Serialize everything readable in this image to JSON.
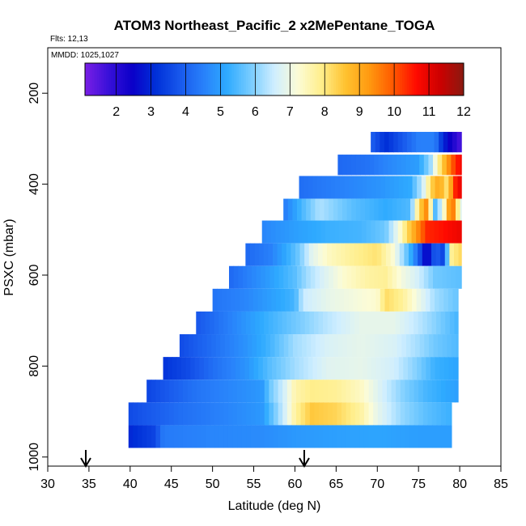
{
  "chart_data": {
    "type": "heatmap",
    "title": "ATOM3 Northeast_Pacific_2 x2MePentane_TOGA",
    "flights_note": "Flts: 12,13",
    "date_note": "MMDD: 1025,1027",
    "xlabel": "Latitude (deg N)",
    "ylabel": "PSXC (mbar)",
    "xlim": [
      30,
      85
    ],
    "ylim": [
      1020,
      100
    ],
    "x_ticks": [
      "30",
      "35",
      "40",
      "45",
      "50",
      "55",
      "60",
      "65",
      "70",
      "75",
      "80",
      "85"
    ],
    "y_ticks": [
      "200",
      "400",
      "600",
      "800",
      "1000"
    ],
    "colorbar": {
      "min": 1.1,
      "max": 12,
      "ticks": [
        "2",
        "3",
        "4",
        "5",
        "6",
        "7",
        "8",
        "9",
        "10",
        "11",
        "12"
      ],
      "colors": [
        "#7a1fe6",
        "#3810d9",
        "#0b00c8",
        "#0030d8",
        "#1858ec",
        "#2880fa",
        "#2eaaff",
        "#78ccff",
        "#cfeeff",
        "#fcfcd6",
        "#ffee8a",
        "#ffc230",
        "#ff9a10",
        "#ff5a00",
        "#ff0a00",
        "#cc0000",
        "#8a1a10"
      ]
    },
    "bands": [
      {
        "p_top": 285,
        "p_bot": 330,
        "lat_start": 69.2,
        "lat_end": 80.2,
        "stops": [
          [
            69.2,
            4.0
          ],
          [
            71,
            3.1
          ],
          [
            73,
            3.8
          ],
          [
            75,
            4.5
          ],
          [
            77,
            4.5
          ],
          [
            78,
            3.0
          ],
          [
            79.5,
            2.0
          ],
          [
            80.2,
            1.5
          ]
        ]
      },
      {
        "p_top": 335,
        "p_bot": 380,
        "lat_start": 65.2,
        "lat_end": 80.2,
        "stops": [
          [
            65.2,
            4.1
          ],
          [
            69,
            4.3
          ],
          [
            72,
            4.7
          ],
          [
            75,
            5.0
          ],
          [
            76.5,
            6.2
          ],
          [
            77.5,
            7.9
          ],
          [
            78.5,
            9.2
          ],
          [
            79.5,
            10.4
          ],
          [
            80.2,
            10.8
          ]
        ]
      },
      {
        "p_top": 382,
        "p_bot": 432,
        "lat_start": 60.5,
        "lat_end": 80.2,
        "stops": [
          [
            60.5,
            4.2
          ],
          [
            65,
            4.5
          ],
          [
            70,
            4.8
          ],
          [
            74,
            5.2
          ],
          [
            75.5,
            6.5
          ],
          [
            76.5,
            8.3
          ],
          [
            77.5,
            9.1
          ],
          [
            78.5,
            8.0
          ],
          [
            79.5,
            10.5
          ],
          [
            80.2,
            11.0
          ]
        ]
      },
      {
        "p_top": 432,
        "p_bot": 480,
        "lat_start": 58.6,
        "lat_end": 80.2,
        "stops": [
          [
            58.6,
            4.4
          ],
          [
            61,
            5.5
          ],
          [
            63,
            6.3
          ],
          [
            67,
            5.6
          ],
          [
            71,
            5.2
          ],
          [
            74,
            5.5
          ],
          [
            75,
            8.1
          ],
          [
            76,
            9.5
          ],
          [
            77,
            5.5
          ],
          [
            78,
            7.0
          ],
          [
            79,
            10.2
          ],
          [
            80.2,
            6.6
          ]
        ]
      },
      {
        "p_top": 480,
        "p_bot": 530,
        "lat_start": 56.0,
        "lat_end": 80.2,
        "stops": [
          [
            56.0,
            4.6
          ],
          [
            60,
            5.0
          ],
          [
            64,
            5.3
          ],
          [
            68,
            5.4
          ],
          [
            71,
            5.8
          ],
          [
            72.5,
            7.0
          ],
          [
            73.5,
            8.1
          ],
          [
            75,
            9.5
          ],
          [
            76,
            10.4
          ],
          [
            78,
            10.6
          ],
          [
            80.2,
            10.9
          ]
        ]
      },
      {
        "p_top": 530,
        "p_bot": 580,
        "lat_start": 54.0,
        "lat_end": 80.2,
        "stops": [
          [
            54.0,
            4.1
          ],
          [
            57,
            4.5
          ],
          [
            59,
            5.2
          ],
          [
            60.5,
            5.8
          ],
          [
            62,
            6.8
          ],
          [
            64,
            7.4
          ],
          [
            67,
            7.8
          ],
          [
            70,
            8.1
          ],
          [
            72,
            7.2
          ],
          [
            74,
            5.3
          ],
          [
            75,
            4.0
          ],
          [
            76,
            2.2
          ],
          [
            77,
            4.0
          ],
          [
            78,
            3.5
          ],
          [
            79,
            7.8
          ],
          [
            80.2,
            8.3
          ]
        ]
      },
      {
        "p_top": 580,
        "p_bot": 630,
        "lat_start": 52.0,
        "lat_end": 80.2,
        "stops": [
          [
            52.0,
            4.1
          ],
          [
            56,
            4.8
          ],
          [
            60,
            5.6
          ],
          [
            61.5,
            6.2
          ],
          [
            63,
            6.6
          ],
          [
            66,
            7.3
          ],
          [
            69,
            7.7
          ],
          [
            71,
            7.8
          ],
          [
            73,
            7.1
          ],
          [
            75,
            6.6
          ],
          [
            77,
            5.8
          ],
          [
            80.2,
            5.6
          ]
        ]
      },
      {
        "p_top": 630,
        "p_bot": 680,
        "lat_start": 50.0,
        "lat_end": 79.8,
        "stops": [
          [
            50.0,
            4.3
          ],
          [
            54,
            4.6
          ],
          [
            57,
            5.0
          ],
          [
            60,
            5.4
          ],
          [
            61,
            6.5
          ],
          [
            64,
            6.9
          ],
          [
            67,
            7.1
          ],
          [
            70,
            7.3
          ],
          [
            71,
            8.2
          ],
          [
            73,
            7.8
          ],
          [
            75,
            7.0
          ],
          [
            77,
            6.2
          ],
          [
            79.8,
            5.7
          ]
        ]
      },
      {
        "p_top": 680,
        "p_bot": 730,
        "lat_start": 48.0,
        "lat_end": 79.8,
        "stops": [
          [
            48.0,
            3.8
          ],
          [
            52,
            4.5
          ],
          [
            56,
            5.2
          ],
          [
            60,
            5.8
          ],
          [
            64,
            6.4
          ],
          [
            68,
            6.9
          ],
          [
            72,
            6.9
          ],
          [
            75,
            6.4
          ],
          [
            77,
            6.0
          ],
          [
            79.8,
            5.4
          ]
        ]
      },
      {
        "p_top": 730,
        "p_bot": 780,
        "lat_start": 46.0,
        "lat_end": 79.8,
        "stops": [
          [
            46.0,
            3.6
          ],
          [
            50,
            4.2
          ],
          [
            54,
            4.8
          ],
          [
            57,
            5.4
          ],
          [
            60,
            6.2
          ],
          [
            64,
            6.7
          ],
          [
            68,
            6.9
          ],
          [
            72,
            6.7
          ],
          [
            75,
            6.2
          ],
          [
            77,
            5.8
          ],
          [
            79.8,
            5.5
          ]
        ]
      },
      {
        "p_top": 780,
        "p_bot": 830,
        "lat_start": 44.0,
        "lat_end": 79.8,
        "stops": [
          [
            44.0,
            3.2
          ],
          [
            47,
            3.6
          ],
          [
            50,
            4.2
          ],
          [
            54,
            4.8
          ],
          [
            57,
            5.6
          ],
          [
            60,
            6.2
          ],
          [
            64,
            6.8
          ],
          [
            68,
            6.9
          ],
          [
            72,
            6.6
          ],
          [
            75,
            5.9
          ],
          [
            77,
            5.3
          ],
          [
            79.8,
            5.1
          ]
        ]
      },
      {
        "p_top": 830,
        "p_bot": 880,
        "lat_start": 42.0,
        "lat_end": 79.8,
        "stops": [
          [
            42.0,
            3.5
          ],
          [
            48,
            4.3
          ],
          [
            52,
            4.6
          ],
          [
            56,
            4.9
          ],
          [
            57,
            5.8
          ],
          [
            59,
            6.8
          ],
          [
            60,
            7.6
          ],
          [
            62,
            7.9
          ],
          [
            65,
            7.8
          ],
          [
            68,
            7.4
          ],
          [
            70,
            6.8
          ],
          [
            73,
            6.0
          ],
          [
            76,
            5.4
          ],
          [
            79.8,
            5.0
          ]
        ]
      },
      {
        "p_top": 880,
        "p_bot": 930,
        "lat_start": 39.8,
        "lat_end": 79.0,
        "stops": [
          [
            39.8,
            3.6
          ],
          [
            46,
            4.2
          ],
          [
            52,
            4.6
          ],
          [
            56,
            4.9
          ],
          [
            57,
            5.5
          ],
          [
            59,
            6.8
          ],
          [
            60,
            7.7
          ],
          [
            62,
            8.5
          ],
          [
            65,
            8.3
          ],
          [
            68,
            7.7
          ],
          [
            70,
            6.9
          ],
          [
            73,
            6.1
          ],
          [
            76,
            5.6
          ],
          [
            79.0,
            5.3
          ]
        ]
      },
      {
        "p_top": 930,
        "p_bot": 980,
        "lat_start": 39.8,
        "lat_end": 79.0,
        "stops": [
          [
            39.8,
            3.0
          ],
          [
            43,
            3.5
          ],
          [
            44,
            4.4
          ],
          [
            50,
            4.6
          ],
          [
            56,
            4.7
          ],
          [
            60,
            4.9
          ],
          [
            64,
            5.0
          ],
          [
            70,
            5.1
          ],
          [
            75,
            5.0
          ],
          [
            79.0,
            5.0
          ]
        ]
      }
    ]
  }
}
